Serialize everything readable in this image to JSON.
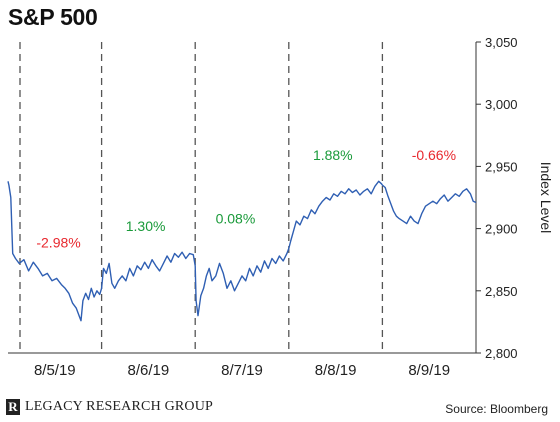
{
  "header": {
    "title": "S&P 500"
  },
  "footer": {
    "brand": "LEGACY RESEARCH GROUP",
    "brand_mark": "R",
    "source": "Source: Bloomberg"
  },
  "colors": {
    "line": "#2f5fb3",
    "negative": "#e8282e",
    "positive": "#1a9a3a",
    "axis": "#333333",
    "divider": "#555555"
  },
  "chart_data": {
    "type": "line",
    "title": "S&P 500",
    "ylabel": "Index Level",
    "ylim": [
      2800,
      3050
    ],
    "yticks": [
      2800,
      2850,
      2900,
      2950,
      3000,
      3050
    ],
    "ytick_labels": [
      "2,800",
      "2,850",
      "2,900",
      "2,950",
      "3,000",
      "3,050"
    ],
    "categories": [
      "8/5/19",
      "8/6/19",
      "8/7/19",
      "8/8/19",
      "8/9/19"
    ],
    "day_changes": [
      {
        "day": "8/5/19",
        "label": "-2.98%",
        "sign": "negative"
      },
      {
        "day": "8/6/19",
        "label": "1.30%",
        "sign": "positive"
      },
      {
        "day": "8/7/19",
        "label": "0.08%",
        "sign": "positive"
      },
      {
        "day": "8/8/19",
        "label": "1.88%",
        "sign": "positive"
      },
      {
        "day": "8/9/19",
        "label": "-0.66%",
        "sign": "negative"
      }
    ],
    "series": [
      {
        "values": [
          [
            0.0,
            2938
          ],
          [
            0.01,
            2935
          ],
          [
            0.03,
            2925
          ],
          [
            0.05,
            2880
          ],
          [
            0.08,
            2876
          ],
          [
            0.12,
            2872
          ],
          [
            0.17,
            2875
          ],
          [
            0.22,
            2866
          ],
          [
            0.27,
            2873
          ],
          [
            0.32,
            2868
          ],
          [
            0.37,
            2862
          ],
          [
            0.42,
            2864
          ],
          [
            0.47,
            2858
          ],
          [
            0.52,
            2860
          ],
          [
            0.57,
            2855
          ],
          [
            0.61,
            2852
          ],
          [
            0.65,
            2848
          ],
          [
            0.69,
            2840
          ],
          [
            0.73,
            2836
          ],
          [
            0.76,
            2830
          ],
          [
            0.78,
            2826
          ],
          [
            0.8,
            2842
          ],
          [
            0.83,
            2848
          ],
          [
            0.86,
            2843
          ],
          [
            0.89,
            2852
          ],
          [
            0.92,
            2845
          ],
          [
            0.95,
            2850
          ],
          [
            0.98,
            2847
          ],
          [
            1.0,
            2852
          ],
          [
            1.02,
            2868
          ],
          [
            1.05,
            2864
          ],
          [
            1.08,
            2872
          ],
          [
            1.11,
            2856
          ],
          [
            1.14,
            2852
          ],
          [
            1.18,
            2858
          ],
          [
            1.22,
            2862
          ],
          [
            1.26,
            2858
          ],
          [
            1.3,
            2868
          ],
          [
            1.34,
            2862
          ],
          [
            1.38,
            2870
          ],
          [
            1.42,
            2867
          ],
          [
            1.46,
            2873
          ],
          [
            1.5,
            2868
          ],
          [
            1.54,
            2875
          ],
          [
            1.58,
            2870
          ],
          [
            1.62,
            2866
          ],
          [
            1.66,
            2872
          ],
          [
            1.7,
            2878
          ],
          [
            1.74,
            2873
          ],
          [
            1.78,
            2880
          ],
          [
            1.82,
            2877
          ],
          [
            1.86,
            2881
          ],
          [
            1.9,
            2876
          ],
          [
            1.94,
            2880
          ],
          [
            1.98,
            2879
          ],
          [
            2.0,
            2870
          ],
          [
            2.01,
            2842
          ],
          [
            2.03,
            2830
          ],
          [
            2.06,
            2846
          ],
          [
            2.09,
            2852
          ],
          [
            2.12,
            2862
          ],
          [
            2.15,
            2868
          ],
          [
            2.18,
            2858
          ],
          [
            2.22,
            2862
          ],
          [
            2.26,
            2872
          ],
          [
            2.3,
            2864
          ],
          [
            2.34,
            2852
          ],
          [
            2.38,
            2858
          ],
          [
            2.42,
            2850
          ],
          [
            2.46,
            2856
          ],
          [
            2.5,
            2862
          ],
          [
            2.54,
            2858
          ],
          [
            2.58,
            2868
          ],
          [
            2.62,
            2862
          ],
          [
            2.66,
            2870
          ],
          [
            2.7,
            2865
          ],
          [
            2.74,
            2874
          ],
          [
            2.78,
            2868
          ],
          [
            2.82,
            2876
          ],
          [
            2.86,
            2872
          ],
          [
            2.9,
            2878
          ],
          [
            2.94,
            2874
          ],
          [
            2.98,
            2880
          ],
          [
            3.0,
            2884
          ],
          [
            3.02,
            2890
          ],
          [
            3.05,
            2898
          ],
          [
            3.08,
            2906
          ],
          [
            3.12,
            2903
          ],
          [
            3.16,
            2910
          ],
          [
            3.2,
            2908
          ],
          [
            3.24,
            2915
          ],
          [
            3.28,
            2912
          ],
          [
            3.32,
            2918
          ],
          [
            3.36,
            2922
          ],
          [
            3.4,
            2925
          ],
          [
            3.44,
            2923
          ],
          [
            3.48,
            2928
          ],
          [
            3.52,
            2926
          ],
          [
            3.56,
            2930
          ],
          [
            3.6,
            2928
          ],
          [
            3.64,
            2932
          ],
          [
            3.68,
            2929
          ],
          [
            3.72,
            2931
          ],
          [
            3.76,
            2927
          ],
          [
            3.8,
            2930
          ],
          [
            3.84,
            2932
          ],
          [
            3.88,
            2928
          ],
          [
            3.92,
            2934
          ],
          [
            3.96,
            2938
          ],
          [
            3.99,
            2936
          ],
          [
            4.0,
            2935
          ],
          [
            4.03,
            2933
          ],
          [
            4.06,
            2926
          ],
          [
            4.09,
            2920
          ],
          [
            4.12,
            2914
          ],
          [
            4.15,
            2910
          ],
          [
            4.18,
            2908
          ],
          [
            4.22,
            2906
          ],
          [
            4.26,
            2904
          ],
          [
            4.3,
            2910
          ],
          [
            4.34,
            2906
          ],
          [
            4.38,
            2904
          ],
          [
            4.42,
            2912
          ],
          [
            4.46,
            2918
          ],
          [
            4.5,
            2920
          ],
          [
            4.54,
            2922
          ],
          [
            4.58,
            2920
          ],
          [
            4.62,
            2924
          ],
          [
            4.66,
            2927
          ],
          [
            4.7,
            2922
          ],
          [
            4.74,
            2925
          ],
          [
            4.78,
            2928
          ],
          [
            4.82,
            2926
          ],
          [
            4.86,
            2930
          ],
          [
            4.9,
            2932
          ],
          [
            4.94,
            2928
          ],
          [
            4.97,
            2922
          ],
          [
            5.0,
            2921
          ]
        ]
      }
    ]
  }
}
